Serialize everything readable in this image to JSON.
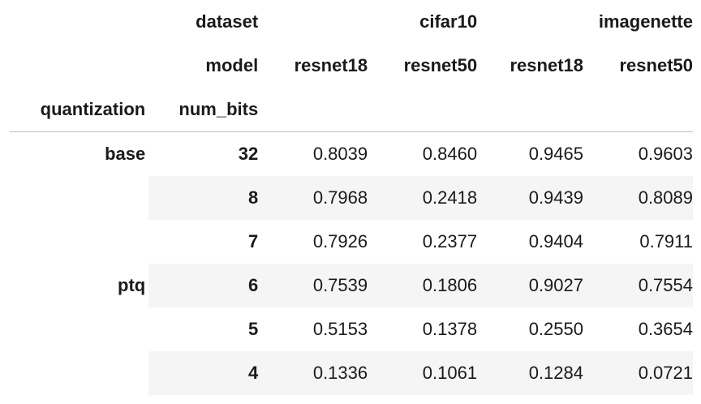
{
  "table": {
    "header": {
      "dataset_label": "dataset",
      "dataset_groups": [
        "cifar10",
        "imagenette"
      ],
      "model_label": "model",
      "models": [
        "resnet18",
        "resnet50",
        "resnet18",
        "resnet50"
      ],
      "index_names": [
        "quantization",
        "num_bits"
      ]
    },
    "groups": [
      "base",
      "ptq"
    ],
    "rows": [
      {
        "num_bits": "32",
        "values": [
          "0.8039",
          "0.8460",
          "0.9465",
          "0.9603"
        ]
      },
      {
        "num_bits": "8",
        "values": [
          "0.7968",
          "0.2418",
          "0.9439",
          "0.8089"
        ]
      },
      {
        "num_bits": "7",
        "values": [
          "0.7926",
          "0.2377",
          "0.9404",
          "0.7911"
        ]
      },
      {
        "num_bits": "6",
        "values": [
          "0.7539",
          "0.1806",
          "0.9027",
          "0.7554"
        ]
      },
      {
        "num_bits": "5",
        "values": [
          "0.5153",
          "0.1378",
          "0.2550",
          "0.3654"
        ]
      },
      {
        "num_bits": "4",
        "values": [
          "0.1336",
          "0.1061",
          "0.1284",
          "0.0721"
        ]
      }
    ]
  }
}
